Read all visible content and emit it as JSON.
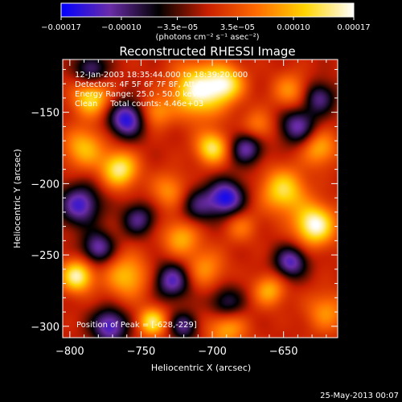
{
  "chart_data": {
    "type": "heatmap",
    "title": "Reconstructed RHESSI Image",
    "xlabel": "Heliocentric X (arcsec)",
    "ylabel": "Heliocentric Y (arcsec)",
    "xlim": [
      -805,
      -612
    ],
    "ylim": [
      -308,
      -113
    ],
    "x_ticks": [
      -800,
      -750,
      -700,
      -650
    ],
    "y_ticks": [
      -300,
      -250,
      -200,
      -150
    ],
    "x_tick_labels": [
      "−800",
      "−750",
      "−700",
      "−650"
    ],
    "y_tick_labels": [
      "−300",
      "−250",
      "−200",
      "−150"
    ],
    "colorbar": {
      "range": [
        -0.00017,
        0.00017
      ],
      "ticks": [
        -0.00017,
        -0.0001,
        -3.5e-05,
        3.5e-05,
        0.0001,
        0.00017
      ],
      "tick_labels": [
        "−0.00017",
        "−0.00010",
        "−3.5e−05",
        "3.5e−05",
        "0.00010",
        "0.00017"
      ],
      "units_label": "(photons cm⁻² s⁻¹ asec⁻²)",
      "colors": [
        "#0000ff",
        "#6a2ca8",
        "#000000",
        "#c81e00",
        "#ff6a00",
        "#ffd400",
        "#ffffff"
      ]
    },
    "annotations": [
      "12-Jan-2003 18:35:44.000 to 18:39:20.000",
      "Detectors: 4F 5F 6F 7F 8F, Att 0",
      "Energy Range: 25.0 - 50.0 keV",
      "Clean     Total counts: 4.46e+03"
    ],
    "peak_label": "Position of Peak = [-628,-229]",
    "peak": [
      -628,
      -229
    ],
    "blobs": [
      {
        "x": -628,
        "y": -229,
        "v": 1.0,
        "s": 10
      },
      {
        "x": -710,
        "y": -135,
        "v": 0.95,
        "s": 13
      },
      {
        "x": -690,
        "y": -130,
        "v": 0.7,
        "s": 9
      },
      {
        "x": -700,
        "y": -175,
        "v": 0.8,
        "s": 8
      },
      {
        "x": -785,
        "y": -140,
        "v": 0.75,
        "s": 9
      },
      {
        "x": -790,
        "y": -175,
        "v": 0.6,
        "s": 10
      },
      {
        "x": -765,
        "y": -190,
        "v": 0.85,
        "s": 9
      },
      {
        "x": -795,
        "y": -265,
        "v": 0.9,
        "s": 8
      },
      {
        "x": -760,
        "y": -265,
        "v": 0.6,
        "s": 11
      },
      {
        "x": -742,
        "y": -297,
        "v": 0.8,
        "s": 7
      },
      {
        "x": -722,
        "y": -238,
        "v": 0.55,
        "s": 9
      },
      {
        "x": -730,
        "y": -205,
        "v": 0.45,
        "s": 9
      },
      {
        "x": -705,
        "y": -260,
        "v": 0.45,
        "s": 10
      },
      {
        "x": -690,
        "y": -300,
        "v": 0.6,
        "s": 10
      },
      {
        "x": -660,
        "y": -275,
        "v": 0.55,
        "s": 8
      },
      {
        "x": -650,
        "y": -205,
        "v": 0.75,
        "s": 11
      },
      {
        "x": -668,
        "y": -160,
        "v": 0.4,
        "s": 8
      },
      {
        "x": -625,
        "y": -175,
        "v": 0.55,
        "s": 9
      },
      {
        "x": -620,
        "y": -290,
        "v": 0.45,
        "s": 10
      },
      {
        "x": -645,
        "y": -135,
        "v": 0.45,
        "s": 9
      },
      {
        "x": -740,
        "y": -150,
        "v": 0.45,
        "s": 8
      },
      {
        "x": -680,
        "y": -230,
        "v": 0.35,
        "s": 8
      },
      {
        "x": -760,
        "y": -155,
        "v": -0.9,
        "s": 9
      },
      {
        "x": -793,
        "y": -215,
        "v": -0.8,
        "s": 10
      },
      {
        "x": -780,
        "y": -245,
        "v": -0.7,
        "s": 8
      },
      {
        "x": -728,
        "y": -268,
        "v": -0.75,
        "s": 9
      },
      {
        "x": -752,
        "y": -225,
        "v": -0.6,
        "s": 8
      },
      {
        "x": -690,
        "y": -210,
        "v": -0.9,
        "s": 9
      },
      {
        "x": -676,
        "y": -175,
        "v": -0.7,
        "s": 8
      },
      {
        "x": -640,
        "y": -160,
        "v": -0.7,
        "s": 9
      },
      {
        "x": -625,
        "y": -140,
        "v": -0.6,
        "s": 8
      },
      {
        "x": -645,
        "y": -255,
        "v": -0.75,
        "s": 8
      },
      {
        "x": -690,
        "y": -285,
        "v": -0.6,
        "s": 9
      },
      {
        "x": -772,
        "y": -300,
        "v": -0.8,
        "s": 9
      },
      {
        "x": -785,
        "y": -120,
        "v": -0.6,
        "s": 8
      },
      {
        "x": -720,
        "y": -300,
        "v": -0.6,
        "s": 7
      },
      {
        "x": -710,
        "y": -215,
        "v": -0.5,
        "s": 9
      }
    ]
  },
  "footer": {
    "timestamp": "25-May-2013 00:07"
  }
}
